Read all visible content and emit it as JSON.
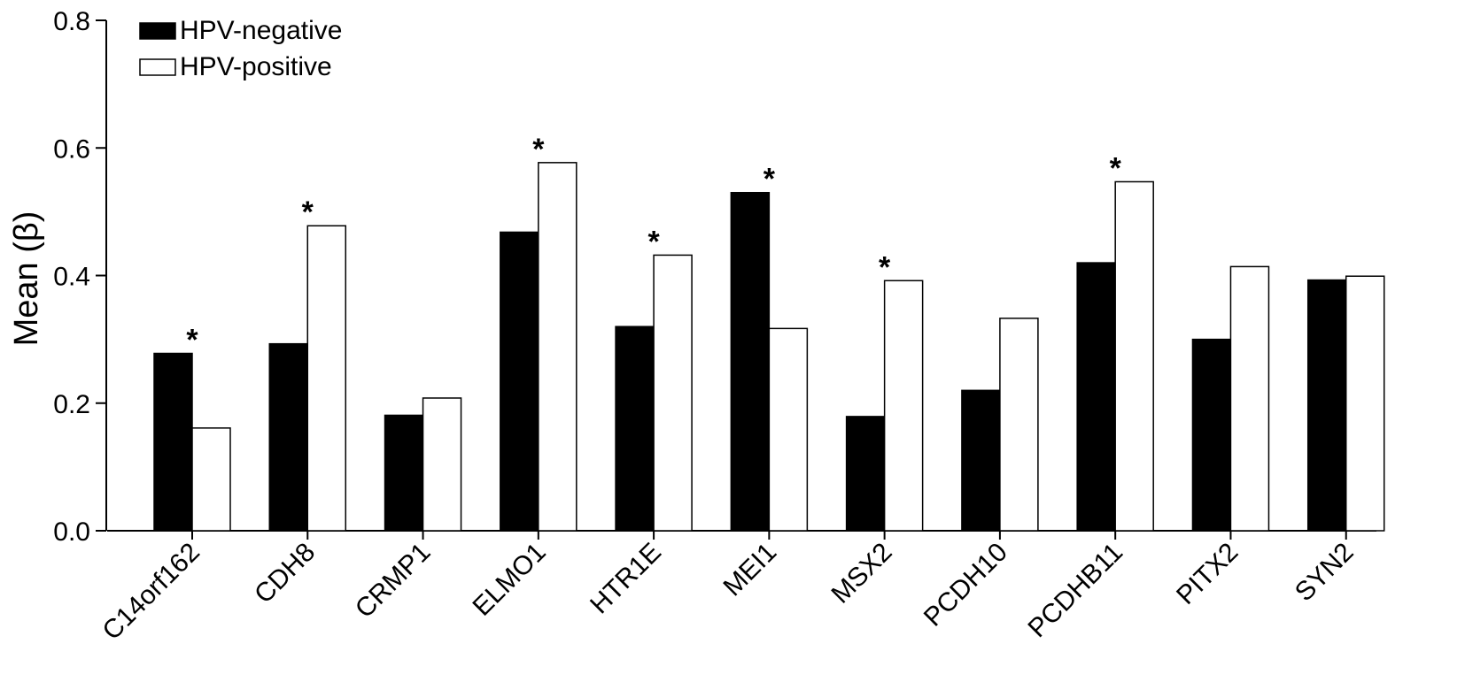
{
  "chart_data": {
    "type": "bar",
    "ylabel": "Mean (β)",
    "xlabel": "",
    "ylim": [
      0,
      0.8
    ],
    "yticks": [
      "0.0",
      "0.2",
      "0.4",
      "0.6",
      "0.8"
    ],
    "ytick_values": [
      0,
      0.2,
      0.4,
      0.6,
      0.8
    ],
    "categories": [
      "C14orf162",
      "CDH8",
      "CRMP1",
      "ELMO1",
      "HTR1E",
      "MEI1",
      "MSX2",
      "PCDH10",
      "PCDHB11",
      "PITX2",
      "SYN2"
    ],
    "series": [
      {
        "name": "HPV-negative",
        "color": "#000000",
        "values": [
          0.278,
          0.293,
          0.181,
          0.468,
          0.32,
          0.53,
          0.179,
          0.22,
          0.42,
          0.3,
          0.393
        ]
      },
      {
        "name": "HPV-positive",
        "color": "#ffffff",
        "values": [
          0.161,
          0.478,
          0.208,
          0.577,
          0.432,
          0.317,
          0.392,
          0.333,
          0.547,
          0.414,
          0.399
        ]
      }
    ],
    "significance": {
      "marker": "*",
      "flags": [
        true,
        true,
        false,
        true,
        true,
        true,
        true,
        false,
        true,
        false,
        false
      ]
    },
    "legend_position": "top-left",
    "grid": false
  }
}
